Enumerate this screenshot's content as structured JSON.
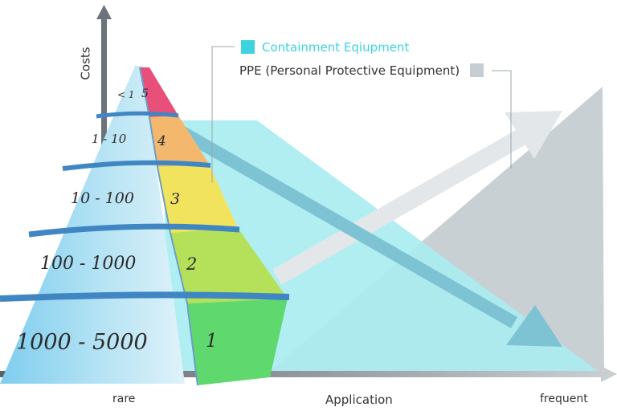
{
  "axes": {
    "y_label": "Costs",
    "x_label": "Application",
    "x_min_label": "rare",
    "x_max_label": "frequent"
  },
  "legend": {
    "containment": {
      "label": "Containment Eqiupment",
      "color": "#3ed3df"
    },
    "ppe": {
      "label": "PPE (Personal Protective Equipment)",
      "color": "#c6ced3"
    }
  },
  "pyramid_levels": [
    {
      "range": "< 1",
      "level": "5"
    },
    {
      "range": "1 - 10",
      "level": "4"
    },
    {
      "range": "10 - 100",
      "level": "3"
    },
    {
      "range": "100 - 1000",
      "level": "2"
    },
    {
      "range": "1000 - 5000",
      "level": "1"
    }
  ],
  "colors": {
    "axis": "#6d737a",
    "ppe_area": "#c9d0d4",
    "containment_area": "#a9ecf1",
    "arrow_blue": "#7dc3d3",
    "arrow_light": "#e3e7e9",
    "pyramid_left": "#8ed4ee",
    "band": "#3f86c3",
    "level_colors": [
      "#5fd96e",
      "#b5e05a",
      "#f2e35e",
      "#f3b86d",
      "#e8507a"
    ]
  }
}
